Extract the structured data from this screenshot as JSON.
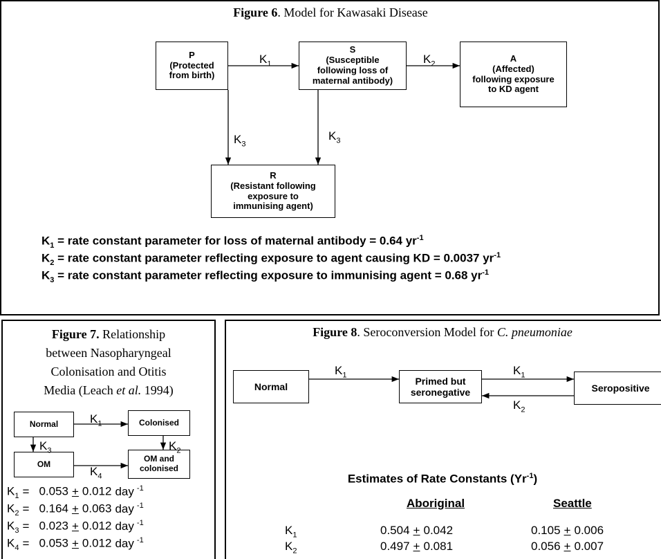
{
  "figure6": {
    "caption": {
      "label": "Figure 6",
      "text": ".  Model for Kawasaki Disease"
    },
    "nodes": [
      {
        "label": "P",
        "lines": [
          "(Protected",
          "from birth)"
        ]
      },
      {
        "label": "S",
        "lines": [
          "(Susceptible",
          "following loss of",
          "maternal antibody)"
        ]
      },
      {
        "label": "A",
        "lines": [
          "(Affected)",
          "following exposure",
          "to KD agent"
        ]
      },
      {
        "label": "R",
        "lines": [
          "(Resistant following",
          "exposure to",
          "immunising agent)"
        ]
      }
    ],
    "edges": [
      {
        "symbol": "K",
        "sub": "1"
      },
      {
        "symbol": "K",
        "sub": "2"
      },
      {
        "symbol": "K",
        "sub": "3"
      },
      {
        "symbol": "K",
        "sub": "3"
      }
    ],
    "definitions": [
      {
        "symbol": "K",
        "sub": "1",
        "text": " = rate constant parameter for loss of maternal antibody = 0.64 yr",
        "sup": "-1"
      },
      {
        "symbol": "K",
        "sub": "2",
        "text": " = rate constant parameter reflecting exposure to agent causing KD = 0.0037 yr",
        "sup": "-1"
      },
      {
        "symbol": "K",
        "sub": "3",
        "text": " = rate constant parameter reflecting exposure to immunising agent = 0.68 yr",
        "sup": "-1"
      }
    ]
  },
  "figure7": {
    "caption": {
      "label": "Figure 7.",
      "lines": [
        " Relationship",
        "between Nasopharyngeal",
        "Colonisation and Otitis"
      ],
      "last_line": [
        "Media (Leach ",
        "et al.",
        " 1994)"
      ]
    },
    "nodes": [
      {
        "lines": [
          "Normal"
        ]
      },
      {
        "lines": [
          "Colonised"
        ]
      },
      {
        "lines": [
          "OM"
        ]
      },
      {
        "lines": [
          "OM and",
          "colonised"
        ]
      }
    ],
    "edges": [
      {
        "symbol": "K",
        "sub": "1"
      },
      {
        "symbol": "K",
        "sub": "3"
      },
      {
        "symbol": "K",
        "sub": "2"
      },
      {
        "symbol": "K",
        "sub": "4"
      }
    ],
    "rates": [
      {
        "symbol": "K",
        "sub": "1",
        "estimate": 0.053,
        "error": 0.012
      },
      {
        "symbol": "K",
        "sub": "2",
        "estimate": 0.164,
        "error": 0.063
      },
      {
        "symbol": "K",
        "sub": "3",
        "estimate": 0.023,
        "error": 0.012
      },
      {
        "symbol": "K",
        "sub": "4",
        "estimate": 0.053,
        "error": 0.012
      }
    ],
    "equals": "=",
    "plus_minus": "+",
    "unit": "day",
    "unit_power": "-1"
  },
  "figure8": {
    "caption": {
      "label": "Figure 8",
      "text": ".  Seroconversion Model for ",
      "organism": "C. pneumoniae"
    },
    "nodes": [
      {
        "lines": [
          "Normal"
        ]
      },
      {
        "lines": [
          "Primed but",
          "seronegative"
        ]
      },
      {
        "lines": [
          "Seropositive"
        ]
      }
    ],
    "edges": [
      {
        "symbol": "K",
        "sub": "1"
      },
      {
        "symbol": "K",
        "sub": "1"
      },
      {
        "symbol": "K",
        "sub": "2"
      }
    ],
    "table": {
      "title": "Estimates of Rate Constants   (Yr",
      "title_sup": "-1",
      "title_end": ")",
      "columns": [
        "Aboriginal",
        "Seattle"
      ],
      "rows": [
        {
          "symbol": "K",
          "sub": "1",
          "values": [
            {
              "estimate": 0.504,
              "error": 0.042
            },
            {
              "estimate": 0.105,
              "error": 0.006
            }
          ]
        },
        {
          "symbol": "K",
          "sub": "2",
          "values": [
            {
              "estimate": 0.497,
              "error": 0.081
            },
            {
              "estimate": 0.056,
              "error": 0.007
            }
          ]
        }
      ],
      "plus_minus": "+"
    }
  }
}
